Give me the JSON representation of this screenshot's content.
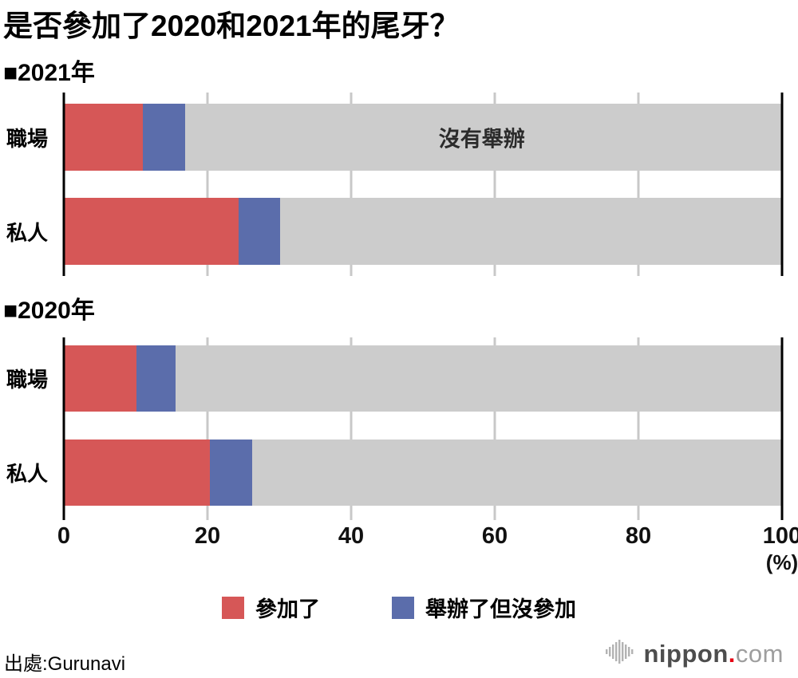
{
  "title": "是否參加了2020和2021年的尾牙？",
  "chart_data": {
    "type": "bar",
    "orientation": "horizontal",
    "stacked": true,
    "unit": "%",
    "xlim": [
      0,
      100
    ],
    "xticks": [
      0,
      20,
      40,
      60,
      80,
      100
    ],
    "xtick_labels": [
      "0",
      "20",
      "40",
      "60",
      "80",
      "100"
    ],
    "axis_unit_label": "(%)",
    "grid": true,
    "legend_position": "bottom-center",
    "series": [
      {
        "key": "attended",
        "name": "參加了",
        "color": "#d65757"
      },
      {
        "key": "held-not-attended",
        "name": "舉辦了但沒參加",
        "color": "#5b6dab"
      },
      {
        "key": "not-held",
        "name": "沒有舉辦",
        "color": "#cccccc"
      }
    ],
    "groups": [
      {
        "label": "■2021年",
        "rows": [
          {
            "category": "職場",
            "values": [
              11.0,
              5.9,
              83.1
            ]
          },
          {
            "category": "私人",
            "values": [
              24.3,
              5.8,
              69.9
            ]
          }
        ]
      },
      {
        "label": "■2020年",
        "rows": [
          {
            "category": "職場",
            "values": [
              10.1,
              5.5,
              84.4
            ]
          },
          {
            "category": "私人",
            "values": [
              20.3,
              5.9,
              73.8
            ]
          }
        ]
      }
    ],
    "annotations": [
      {
        "text": "沒有舉辦",
        "group": 0,
        "row": 0,
        "x_percent": 58.2
      }
    ]
  },
  "footer": {
    "source": "出處:Gurunavi",
    "logo": {
      "icon": "waveform-icon",
      "text_bold": "nippon",
      "dot": ".",
      "text_light": "com"
    }
  }
}
